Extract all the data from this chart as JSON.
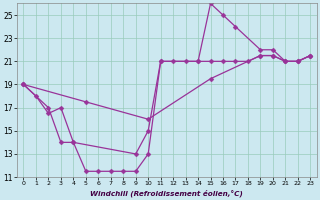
{
  "xlabel": "Windchill (Refroidissement éolien,°C)",
  "bg_color": "#cce8f0",
  "grid_color": "#99ccbb",
  "line_color": "#993399",
  "xlim": [
    -0.5,
    23.5
  ],
  "ylim": [
    11,
    26
  ],
  "xticks": [
    0,
    1,
    2,
    3,
    4,
    5,
    6,
    7,
    8,
    9,
    10,
    11,
    12,
    13,
    14,
    15,
    16,
    17,
    18,
    19,
    20,
    21,
    22,
    23
  ],
  "yticks": [
    11,
    13,
    15,
    17,
    19,
    21,
    23,
    25
  ],
  "line1_x": [
    0,
    1,
    2,
    3,
    4,
    5,
    6,
    7,
    8,
    9,
    10,
    11,
    12,
    13,
    14,
    15,
    16,
    17,
    18,
    19,
    20,
    21,
    22,
    23
  ],
  "line1_y": [
    19,
    18,
    16.5,
    17,
    14,
    11.5,
    11.5,
    11.5,
    11.5,
    11.5,
    13,
    21,
    21,
    21,
    21,
    21,
    21,
    21,
    21,
    21.5,
    21.5,
    21,
    21,
    21.5
  ],
  "line2_x": [
    0,
    5,
    10,
    15,
    19,
    20,
    21,
    22,
    23
  ],
  "line2_y": [
    19,
    17.5,
    16,
    19.5,
    21.5,
    21.5,
    21,
    21,
    21.5
  ],
  "line3_x": [
    0,
    2,
    3,
    4,
    9,
    10,
    11,
    14,
    15,
    16,
    17,
    19,
    20,
    21,
    22,
    23
  ],
  "line3_y": [
    19,
    17,
    14,
    14,
    13,
    15,
    21,
    21,
    26,
    25,
    24,
    22,
    22,
    21,
    21,
    21.5
  ],
  "markersize": 2.5,
  "linewidth": 0.9
}
